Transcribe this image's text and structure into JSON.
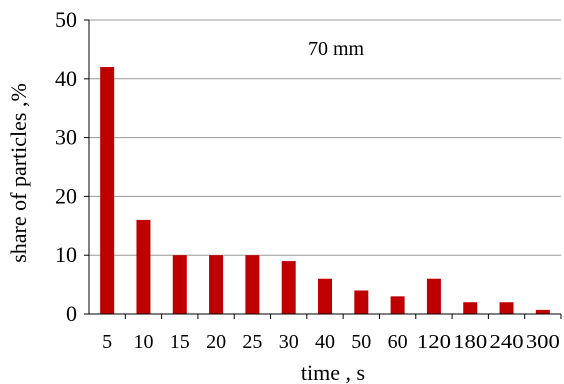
{
  "chart_data": {
    "type": "bar",
    "annotation": "70 mm",
    "xlabel": "time , s",
    "ylabel": "share of particles ,%",
    "categories": [
      "5",
      "10",
      "15",
      "20",
      "25",
      "30",
      "40",
      "50",
      "60",
      "120",
      "180",
      "240",
      "300"
    ],
    "values": [
      42,
      16,
      10,
      10,
      10,
      9,
      6,
      4,
      3,
      6,
      2,
      2,
      0.7
    ],
    "ylim": [
      0,
      50
    ],
    "yticks": [
      0,
      10,
      20,
      30,
      40,
      50
    ],
    "grid": true,
    "bar_color": "#c00000"
  }
}
